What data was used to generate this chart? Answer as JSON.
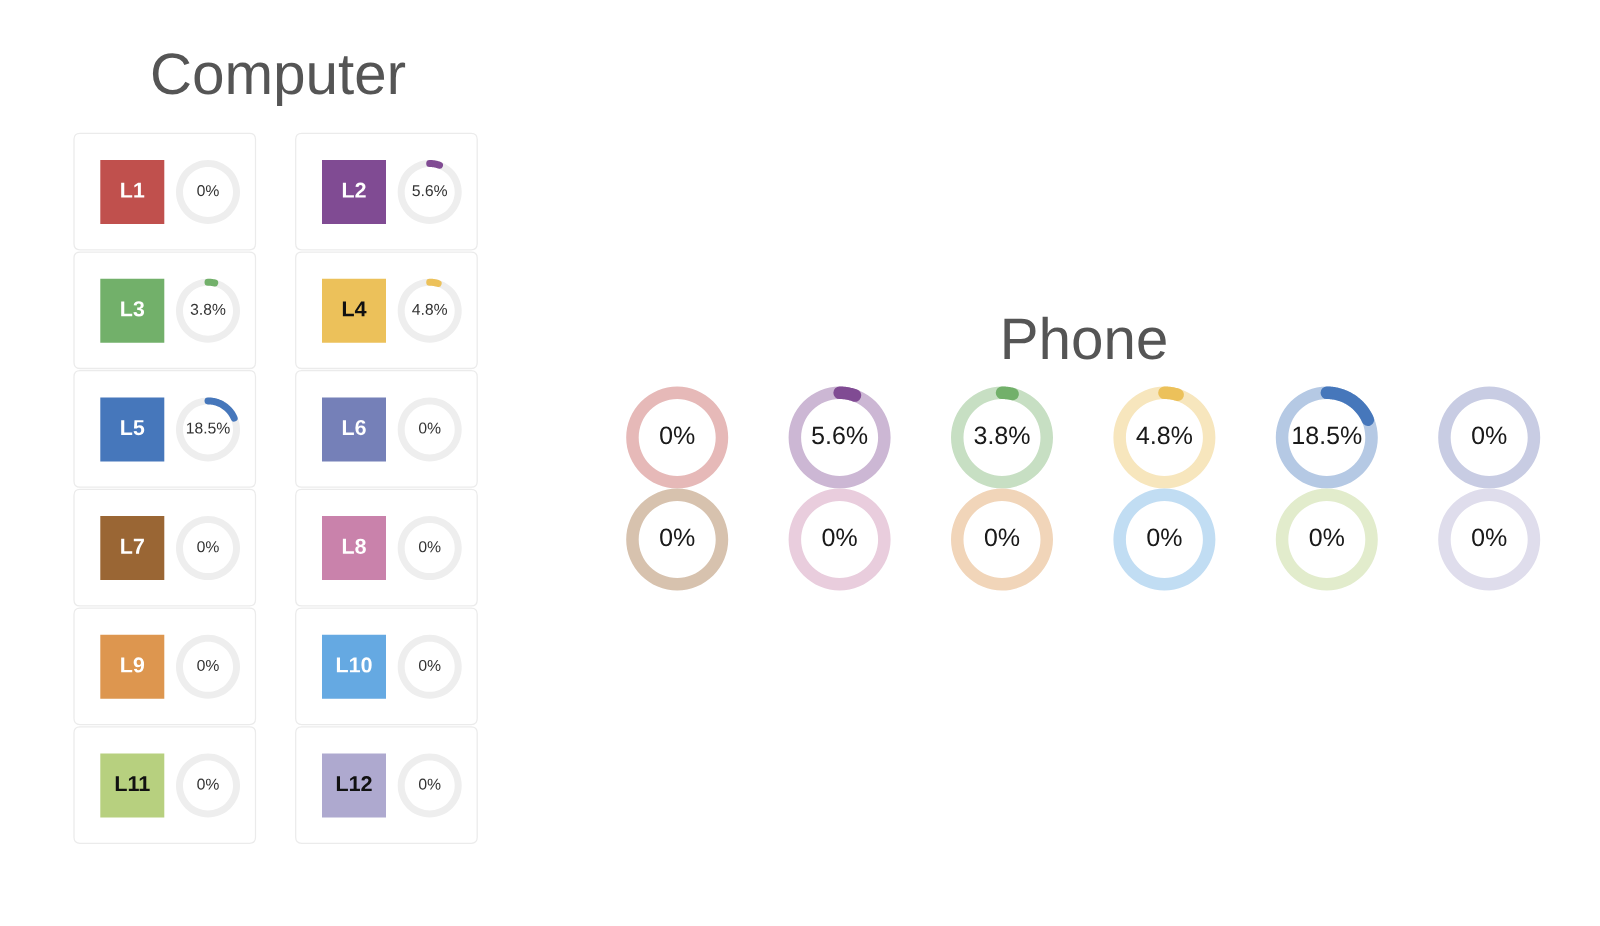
{
  "chart_data": [
    {
      "type": "other",
      "title": "Computer",
      "categories": [
        "L1",
        "L2",
        "L3",
        "L4",
        "L5",
        "L6",
        "L7",
        "L8",
        "L9",
        "L10",
        "L11",
        "L12"
      ],
      "values": [
        0,
        5.6,
        3.8,
        4.8,
        18.5,
        0,
        0,
        0,
        0,
        0,
        0,
        0
      ],
      "value_labels": [
        "0%",
        "5.6%",
        "3.8%",
        "4.8%",
        "18.5%",
        "0%",
        "0%",
        "0%",
        "0%",
        "0%",
        "0%",
        "0%"
      ],
      "colors": [
        "#c0504d",
        "#804b93",
        "#72b06a",
        "#ecc15a",
        "#4677bb",
        "#7580b8",
        "#9a6634",
        "#c982ab",
        "#dd964f",
        "#65a9e2",
        "#b7d07f",
        "#aea9cf"
      ]
    },
    {
      "type": "other",
      "title": "Phone",
      "categories": [
        null,
        null,
        null,
        null,
        null,
        null,
        null,
        null,
        null,
        null,
        null,
        null
      ],
      "values": [
        0,
        5.6,
        3.8,
        4.8,
        18.5,
        0,
        0,
        0,
        0,
        0,
        0,
        0
      ],
      "value_labels": [
        "0%",
        "5.6%",
        "3.8%",
        "4.8%",
        "18.5%",
        "0%",
        "0%",
        "0%",
        "0%",
        "0%",
        "0%",
        "0%"
      ],
      "colors": [
        "#c0504d",
        "#804b93",
        "#72b06a",
        "#ecc15a",
        "#4677bb",
        "#7580b8",
        "#9a6634",
        "#c982ab",
        "#dd964f",
        "#65a9e2",
        "#b7d07f",
        "#aea9cf"
      ]
    }
  ]
}
